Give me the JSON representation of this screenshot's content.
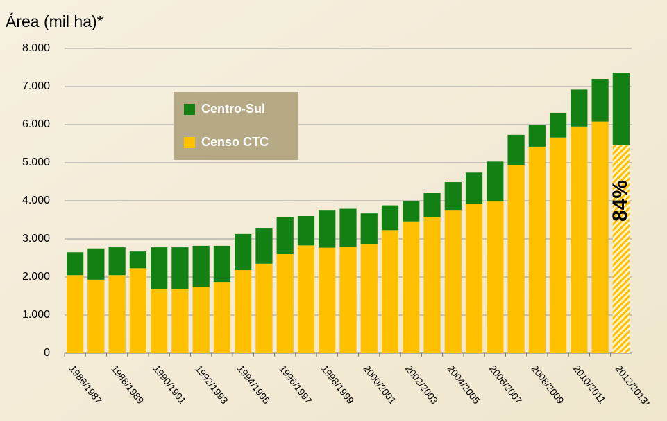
{
  "chart_data": {
    "type": "stacked_bar",
    "title": "Área (mil ha)*",
    "categories": [
      "1986/1987",
      null,
      "1988/1989",
      null,
      "1990/1991",
      null,
      "1992/1993",
      null,
      "1994/1995",
      null,
      "1996/1997",
      null,
      "1998/1999",
      null,
      "2000/2001",
      null,
      "2002/2003",
      null,
      "2004/2005",
      null,
      "2006/2007",
      null,
      "2008/2009",
      null,
      "2010/2011",
      null,
      "2012/2013*"
    ],
    "series": [
      {
        "name": "Censo CTC",
        "color": "#ffc000",
        "values": [
          2050,
          1930,
          2050,
          2230,
          1680,
          1680,
          1730,
          1870,
          2180,
          2350,
          2600,
          2830,
          2770,
          2790,
          2870,
          3230,
          3460,
          3570,
          3760,
          3920,
          3980,
          4940,
          5420,
          5660,
          5950,
          6080,
          5460
        ]
      },
      {
        "name": "Centro-Sul",
        "color": "#138013",
        "values": [
          600,
          820,
          730,
          440,
          1100,
          1100,
          1090,
          950,
          950,
          940,
          980,
          770,
          990,
          1000,
          800,
          650,
          530,
          630,
          730,
          820,
          1050,
          790,
          570,
          650,
          970,
          1120,
          1900
        ]
      }
    ],
    "annotation": "84%",
    "ylim": [
      0,
      8000
    ],
    "yticks": [
      0,
      {
        "value": 1000,
        "label": "1.000"
      },
      {
        "value": 2000,
        "label": "2.000"
      },
      {
        "value": 3000,
        "label": "3.000"
      },
      {
        "value": 4000,
        "label": "4.000"
      },
      {
        "value": 5000,
        "label": "5.000"
      },
      {
        "value": 6000,
        "label": "6.000"
      },
      {
        "value": 7000,
        "label": "7.000"
      },
      {
        "value": 8000,
        "label": "8.000"
      }
    ],
    "grid": true
  }
}
